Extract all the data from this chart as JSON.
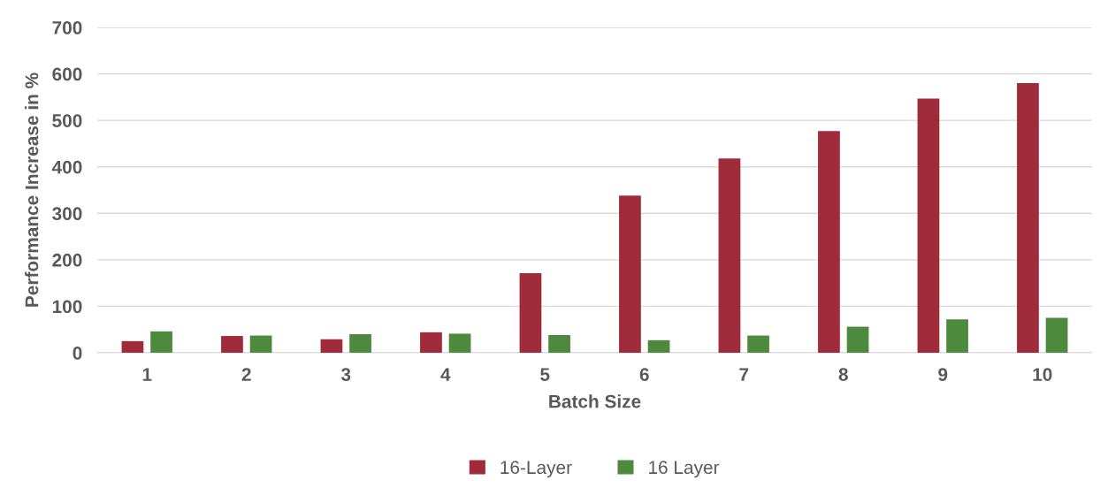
{
  "chart_data": {
    "type": "bar",
    "xlabel": "Batch Size",
    "ylabel": "Performance Increase in %",
    "categories": [
      "1",
      "2",
      "3",
      "4",
      "5",
      "6",
      "7",
      "8",
      "9",
      "10"
    ],
    "series": [
      {
        "name": "16-Layer",
        "color": "#a02b3a",
        "values": [
          25,
          36,
          29,
          44,
          171,
          338,
          418,
          477,
          547,
          580
        ]
      },
      {
        "name": "16 Layer",
        "color": "#4e8a3e",
        "values": [
          46,
          37,
          40,
          41,
          38,
          27,
          37,
          56,
          72,
          75
        ]
      }
    ],
    "ylim": [
      0,
      700
    ],
    "yticks": [
      0,
      100,
      200,
      300,
      400,
      500,
      600,
      700
    ],
    "grid": "y",
    "legend": "bottom"
  }
}
